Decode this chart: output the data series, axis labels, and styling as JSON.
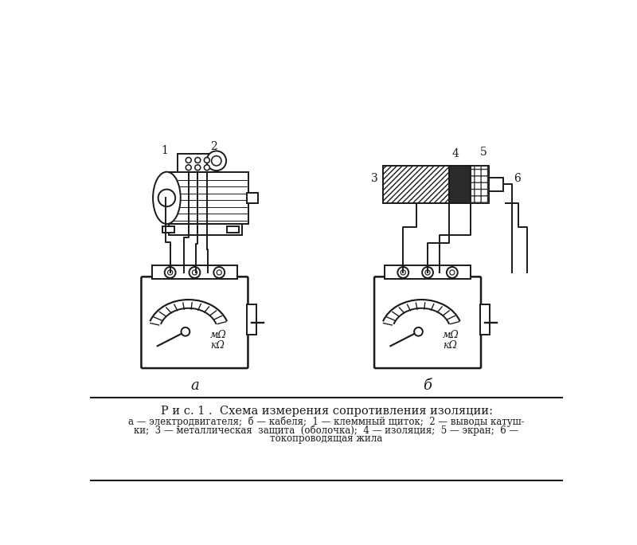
{
  "bg_color": "#ffffff",
  "line_color": "#1a1a1a",
  "caption_title": "Р и с. 1 .  Схема измерения сопротивления изоляции:",
  "caption_line1": "а — электродвигателя;  б — кабеля;  1 — клеммный щиток;  2 — выводы катуш-",
  "caption_line2": "ки;  3 — металлическая  защита  (оболочка);  4 — изоляция;  5 — экран;  6 —",
  "caption_line3": "токопроводящая жила",
  "label_a": "а",
  "label_b": "б"
}
